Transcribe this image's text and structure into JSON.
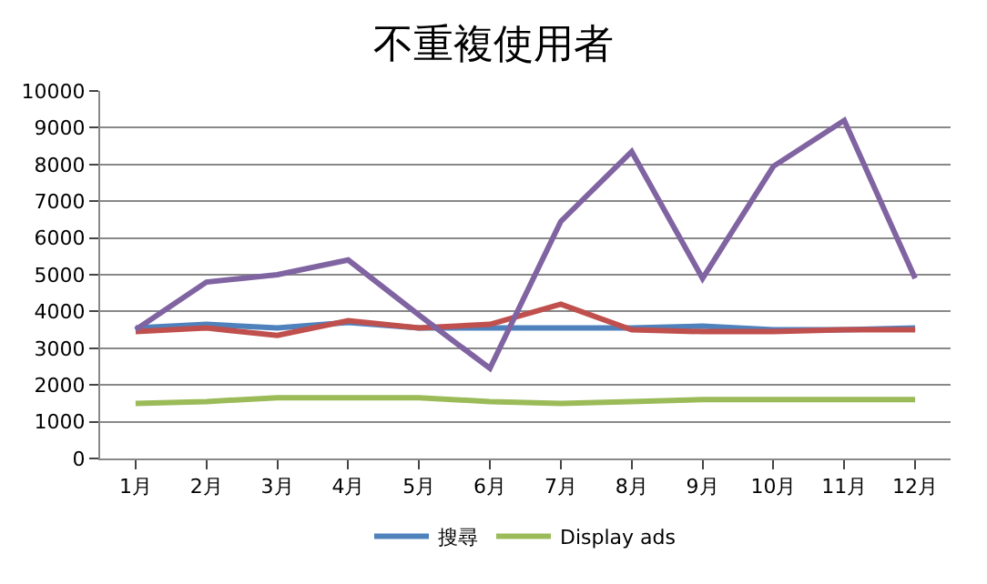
{
  "chart_data": {
    "type": "line",
    "title": "不重複使用者",
    "categories": [
      "1月",
      "2月",
      "3月",
      "4月",
      "5月",
      "6月",
      "7月",
      "8月",
      "9月",
      "10月",
      "11月",
      "12月"
    ],
    "series": [
      {
        "name": "搜尋",
        "color": "#4f81bd",
        "values": [
          3550,
          3650,
          3550,
          3700,
          3550,
          3550,
          3550,
          3550,
          3600,
          3500,
          3500,
          3550
        ]
      },
      {
        "color": "#c0504d",
        "values": [
          3450,
          3550,
          3350,
          3750,
          3550,
          3650,
          4200,
          3500,
          3450,
          3450,
          3500,
          3500
        ]
      },
      {
        "name": "Display ads",
        "color": "#9bbb59",
        "values": [
          1500,
          1550,
          1650,
          1650,
          1650,
          1550,
          1500,
          1550,
          1600,
          1600,
          1600,
          1600
        ]
      },
      {
        "color": "#8064a2",
        "values": [
          3500,
          4800,
          5000,
          5400,
          3900,
          2450,
          6450,
          8350,
          4900,
          7950,
          9200,
          4900
        ]
      }
    ],
    "ylim": [
      0,
      10000
    ],
    "yticks": [
      0,
      1000,
      2000,
      3000,
      4000,
      5000,
      6000,
      7000,
      8000,
      9000,
      10000
    ],
    "grid": "y",
    "legend": "bottom",
    "marker": "none",
    "line_style": "solid"
  }
}
